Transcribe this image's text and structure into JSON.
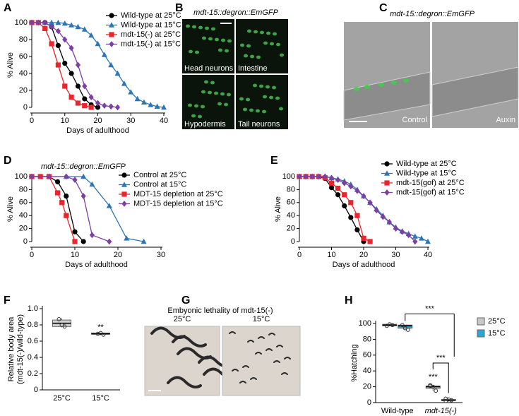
{
  "chart_data": [
    {
      "type": "line",
      "panel": "A",
      "xlabel": "Days of adulthood",
      "ylabel": "% Alive",
      "xlim": [
        0,
        40
      ],
      "xticks": [
        0,
        10,
        20,
        30,
        40
      ],
      "ylim": [
        0,
        100
      ],
      "yticks": [
        0,
        20,
        40,
        60,
        80,
        100
      ],
      "legend": "upper right",
      "series": [
        {
          "name": "Wild-type at 25°C",
          "color": "#000000",
          "marker": "circle",
          "x": [
            0,
            2,
            4,
            6,
            8,
            10,
            12,
            14,
            16,
            18,
            20
          ],
          "values": [
            100,
            100,
            100,
            95,
            73,
            52,
            40,
            25,
            10,
            3,
            0
          ]
        },
        {
          "name": "Wild-type at 15°C",
          "color": "#2e75b6",
          "marker": "triangle",
          "x": [
            0,
            2,
            4,
            6,
            8,
            10,
            12,
            14,
            16,
            18,
            20,
            22,
            24,
            26,
            28,
            30,
            32,
            34,
            36,
            38,
            40
          ],
          "values": [
            100,
            100,
            100,
            100,
            100,
            99,
            97,
            95,
            92,
            85,
            75,
            62,
            50,
            40,
            28,
            18,
            10,
            6,
            3,
            1,
            0
          ]
        },
        {
          "name": "mdt-15(-) at 25°C",
          "color": "#e8262b",
          "marker": "square",
          "x": [
            0,
            2,
            4,
            6,
            8,
            10,
            12,
            14,
            16,
            18
          ],
          "values": [
            100,
            100,
            93,
            75,
            50,
            25,
            12,
            5,
            2,
            0
          ]
        },
        {
          "name": "mdt-15(-) at 15°C",
          "color": "#7b3fa6",
          "marker": "diamond",
          "x": [
            0,
            2,
            4,
            6,
            8,
            10,
            12,
            14,
            16,
            18,
            20,
            22,
            24,
            26
          ],
          "values": [
            100,
            100,
            100,
            95,
            90,
            80,
            70,
            50,
            25,
            12,
            5,
            2,
            1,
            0
          ]
        }
      ]
    },
    {
      "type": "line",
      "panel": "D",
      "title": "mdt-15::degron::EmGFP",
      "xlabel": "Days of adulthood",
      "ylabel": "% Alive",
      "xlim": [
        0,
        30
      ],
      "xticks": [
        0,
        10,
        20,
        30
      ],
      "ylim": [
        0,
        100
      ],
      "yticks": [
        0,
        20,
        40,
        60,
        80,
        100
      ],
      "legend": "upper right",
      "series": [
        {
          "name": "Control at 25°C",
          "color": "#000000",
          "marker": "circle",
          "x": [
            0,
            2,
            4,
            6,
            8,
            10,
            12
          ],
          "values": [
            100,
            100,
            100,
            92,
            70,
            15,
            0
          ]
        },
        {
          "name": "Control at 15°C",
          "color": "#2e75b6",
          "marker": "triangle",
          "x": [
            0,
            4,
            8,
            12,
            14,
            18,
            22,
            26
          ],
          "values": [
            100,
            100,
            100,
            100,
            88,
            55,
            5,
            0
          ]
        },
        {
          "name": "MDT-15 depletion at 25°C",
          "color": "#e8262b",
          "marker": "square",
          "x": [
            0,
            2,
            4,
            6,
            7,
            8,
            10
          ],
          "values": [
            100,
            100,
            100,
            75,
            60,
            40,
            0
          ]
        },
        {
          "name": "MDT-15 depletion at 15°C",
          "color": "#7b3fa6",
          "marker": "diamond",
          "x": [
            0,
            4,
            8,
            10,
            12,
            14,
            18
          ],
          "values": [
            100,
            100,
            100,
            95,
            70,
            10,
            0
          ]
        }
      ]
    },
    {
      "type": "line",
      "panel": "E",
      "xlabel": "Days of adulthood",
      "ylabel": "% Alive",
      "xlim": [
        0,
        40
      ],
      "xticks": [
        0,
        10,
        20,
        30,
        40
      ],
      "ylim": [
        0,
        100
      ],
      "yticks": [
        0,
        20,
        40,
        60,
        80,
        100
      ],
      "legend": "upper right",
      "series": [
        {
          "name": "Wild-type at 25°C",
          "color": "#000000",
          "marker": "circle",
          "x": [
            0,
            2,
            4,
            6,
            8,
            10,
            12,
            14,
            16,
            18,
            20
          ],
          "values": [
            100,
            100,
            100,
            100,
            97,
            83,
            72,
            55,
            37,
            18,
            0
          ]
        },
        {
          "name": "Wild-type at 15°C",
          "color": "#2e75b6",
          "marker": "triangle",
          "x": [
            0,
            2,
            4,
            6,
            8,
            10,
            12,
            14,
            16,
            18,
            20,
            22,
            24,
            26,
            28,
            30,
            32,
            34,
            36,
            38,
            40
          ],
          "values": [
            100,
            100,
            100,
            100,
            100,
            98,
            96,
            93,
            88,
            80,
            70,
            60,
            50,
            40,
            30,
            22,
            16,
            12,
            8,
            5,
            0
          ]
        },
        {
          "name": "mdt-15(gof) at 25°C",
          "color": "#e8262b",
          "marker": "square",
          "x": [
            0,
            2,
            4,
            6,
            8,
            10,
            12,
            14,
            16,
            18,
            20,
            22
          ],
          "values": [
            100,
            100,
            100,
            100,
            98,
            90,
            82,
            72,
            60,
            40,
            5,
            0
          ]
        },
        {
          "name": "mdt-15(gof) at 15°C",
          "color": "#7b3fa6",
          "marker": "diamond",
          "x": [
            0,
            2,
            4,
            6,
            8,
            10,
            12,
            14,
            16,
            18,
            20,
            22,
            24,
            26,
            28,
            30,
            32,
            34,
            36
          ],
          "values": [
            100,
            100,
            100,
            100,
            100,
            98,
            95,
            90,
            85,
            78,
            70,
            60,
            48,
            38,
            30,
            20,
            15,
            10,
            0
          ]
        }
      ]
    },
    {
      "type": "box",
      "panel": "F",
      "ylabel": [
        "Relative body area",
        "(mdt-15(-)/wild-type)"
      ],
      "categories": [
        "25°C",
        "15°C"
      ],
      "ylim": [
        0,
        1
      ],
      "yticks": [
        0,
        0.2,
        0.4,
        0.6,
        0.8,
        {
          "value": 1,
          "label": "1.0"
        }
      ],
      "color": "#d3d3d3",
      "boxes": [
        {
          "whislo": 0.77,
          "q1": 0.78,
          "med": 0.82,
          "q3": 0.86,
          "whishi": 0.88,
          "points": [
            0.87,
            0.8,
            0.78
          ]
        },
        {
          "whislo": 0.68,
          "q1": 0.685,
          "med": 0.69,
          "q3": 0.7,
          "whishi": 0.7,
          "points": [
            0.69,
            0.7,
            0.68
          ]
        }
      ],
      "annotations": [
        "**"
      ]
    },
    {
      "type": "box",
      "panel": "H",
      "ylabel": "%Hatching",
      "categories": [
        "Wild-type",
        "mdt-15(-)"
      ],
      "ylim": [
        0,
        100
      ],
      "yticks": [
        0,
        20,
        40,
        60,
        80,
        100
      ],
      "legend": "upper right",
      "series": [
        {
          "name": "25°C",
          "color": "#c8c8c8",
          "boxes": [
            {
              "whislo": 97,
              "q1": 97,
              "med": 98,
              "q3": 99,
              "whishi": 99,
              "points": [
                97,
                99,
                98
              ]
            },
            {
              "whislo": 15,
              "q1": 18,
              "med": 20,
              "q3": 21,
              "whishi": 22,
              "points": [
                21,
                20,
                15,
                22
              ]
            }
          ]
        },
        {
          "name": "15°C",
          "color": "#2aa6d9",
          "boxes": [
            {
              "whislo": 92,
              "q1": 94,
              "med": 97,
              "q3": 98,
              "whishi": 98,
              "points": [
                98,
                94,
                92
              ]
            },
            {
              "whislo": 2,
              "q1": 2.5,
              "med": 3,
              "q3": 4,
              "whishi": 5,
              "points": [
                2,
                4,
                3,
                5
              ]
            }
          ]
        }
      ],
      "annotations": [
        "***",
        "***",
        "***"
      ]
    }
  ],
  "image_panels": [
    {
      "panel": "B",
      "title": "mdt-15::degron::EmGFP",
      "labels": [
        "Head neurons",
        "Intestine",
        "Hypodermis",
        "Tail neurons"
      ]
    },
    {
      "panel": "C",
      "title": "mdt-15::degron::EmGFP",
      "labels": [
        "Control",
        "Auxin"
      ]
    },
    {
      "panel": "G",
      "title": "Embyonic lethality of mdt-15(-)",
      "labels": [
        "25°C",
        "15°C"
      ]
    }
  ]
}
